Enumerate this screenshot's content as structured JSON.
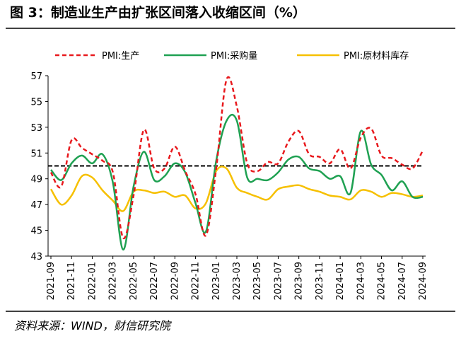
{
  "chart_data": {
    "type": "line",
    "title": "图 3：制造业生产由扩张区间落入收缩区间（%）",
    "source": "资料来源：WIND，财信研究院",
    "categories": [
      "2021-09",
      null,
      "2021-11",
      null,
      "2022-01",
      null,
      "2022-03",
      null,
      "2022-05",
      null,
      "2022-07",
      null,
      "2022-09",
      null,
      "2022-11",
      null,
      "2023-01",
      null,
      "2023-03",
      null,
      "2023-05",
      null,
      "2023-07",
      null,
      "2023-09",
      null,
      "2023-11",
      null,
      "2024-01",
      null,
      "2024-03",
      null,
      "2024-05",
      null,
      "2024-07",
      null,
      "2024-09"
    ],
    "series": [
      {
        "name": "PMI:生产",
        "color": "#e8191d",
        "dash": true,
        "values": [
          49.5,
          48.4,
          52.0,
          51.4,
          50.9,
          50.4,
          49.5,
          44.4,
          47.7,
          52.8,
          49.8,
          49.8,
          51.5,
          49.6,
          47.8,
          44.6,
          49.8,
          56.7,
          54.6,
          50.2,
          49.6,
          50.3,
          50.2,
          51.9,
          52.7,
          50.9,
          50.7,
          50.2,
          51.3,
          49.8,
          52.2,
          52.9,
          50.8,
          50.6,
          50.1,
          49.8,
          51.2
        ]
      },
      {
        "name": "PMI:采购量",
        "color": "#1fa152",
        "dash": false,
        "values": [
          49.7,
          48.9,
          50.2,
          50.8,
          50.2,
          50.9,
          48.7,
          43.5,
          48.4,
          51.1,
          48.9,
          49.2,
          50.2,
          49.5,
          47.1,
          44.9,
          50.4,
          53.5,
          53.5,
          49.1,
          49.0,
          48.9,
          49.5,
          50.5,
          50.7,
          49.8,
          49.6,
          49.0,
          49.2,
          47.9,
          52.7,
          50.1,
          49.3,
          48.1,
          48.8,
          47.6,
          47.6
        ]
      },
      {
        "name": "PMI:原材料库存",
        "color": "#f6c000",
        "dash": false,
        "values": [
          48.2,
          47.0,
          47.7,
          49.2,
          49.1,
          48.1,
          47.3,
          46.5,
          48.0,
          48.1,
          47.9,
          48.0,
          47.6,
          47.7,
          46.7,
          47.1,
          49.6,
          49.8,
          48.3,
          47.9,
          47.6,
          47.4,
          48.2,
          48.4,
          48.5,
          48.2,
          48.0,
          47.7,
          47.6,
          47.4,
          48.1,
          48.0,
          47.6,
          47.9,
          47.8,
          47.6,
          47.7
        ]
      }
    ],
    "reference_line": 50,
    "ylim": [
      43,
      57
    ],
    "yticks": [
      43,
      45,
      47,
      49,
      51,
      53,
      55,
      57
    ]
  }
}
